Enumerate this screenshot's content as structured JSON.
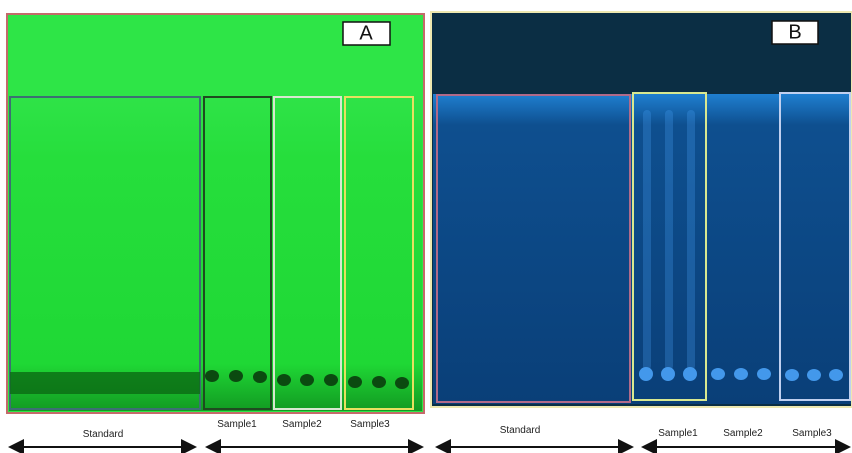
{
  "panels": [
    {
      "label": "A",
      "lanes": [
        "Standard",
        "Sample1",
        "Sample2",
        "Sample3"
      ]
    },
    {
      "label": "B",
      "lanes": [
        "Standard",
        "Sample1",
        "Sample2",
        "Sample3"
      ]
    }
  ]
}
